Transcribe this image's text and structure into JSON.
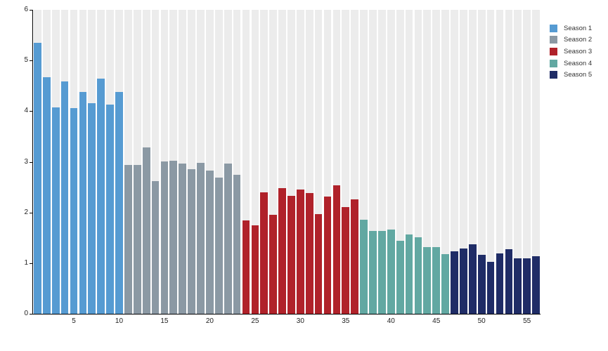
{
  "chart_data": {
    "type": "bar",
    "title": "",
    "xlabel": "",
    "ylabel": "",
    "episode_count": 56,
    "y_axis": {
      "range": [
        0,
        6
      ],
      "ticks": [
        0,
        1,
        2,
        3,
        4,
        5,
        6
      ]
    },
    "x_axis": {
      "ticks": [
        5,
        10,
        15,
        20,
        25,
        30,
        35,
        40,
        45,
        50,
        55
      ]
    },
    "grid": "striped-background-columns",
    "legend_position": "top-right",
    "series": [
      {
        "name": "Season 1",
        "color": "#569bd2",
        "start_episode": 1,
        "values": [
          5.35,
          4.67,
          4.08,
          4.58,
          4.06,
          4.38,
          4.16,
          4.64,
          4.13,
          4.38
        ]
      },
      {
        "name": "Season 2",
        "color": "#8b99a4",
        "start_episode": 11,
        "values": [
          2.94,
          2.94,
          3.29,
          2.62,
          3.01,
          3.02,
          2.96,
          2.85,
          2.98,
          2.82,
          2.69,
          2.96,
          2.75
        ]
      },
      {
        "name": "Season 3",
        "color": "#b0222a",
        "start_episode": 24,
        "values": [
          1.84,
          1.75,
          2.4,
          1.95,
          2.48,
          2.33,
          2.45,
          2.38,
          1.97,
          2.31,
          2.53,
          2.11,
          2.26
        ]
      },
      {
        "name": "Season 4",
        "color": "#62a8a2",
        "start_episode": 37,
        "values": [
          1.85,
          1.64,
          1.63,
          1.66,
          1.44,
          1.56,
          1.51,
          1.32,
          1.32,
          1.18
        ]
      },
      {
        "name": "Season 5",
        "color": "#1f2c66",
        "start_episode": 47,
        "values": [
          1.24,
          1.29,
          1.37,
          1.17,
          1.02,
          1.19,
          1.28,
          1.09,
          1.09,
          1.13
        ]
      }
    ],
    "colors": {
      "background_stripe": "#ececec",
      "axis": "#000000",
      "tick_label": "#222222",
      "legend_text": "#333333"
    }
  }
}
